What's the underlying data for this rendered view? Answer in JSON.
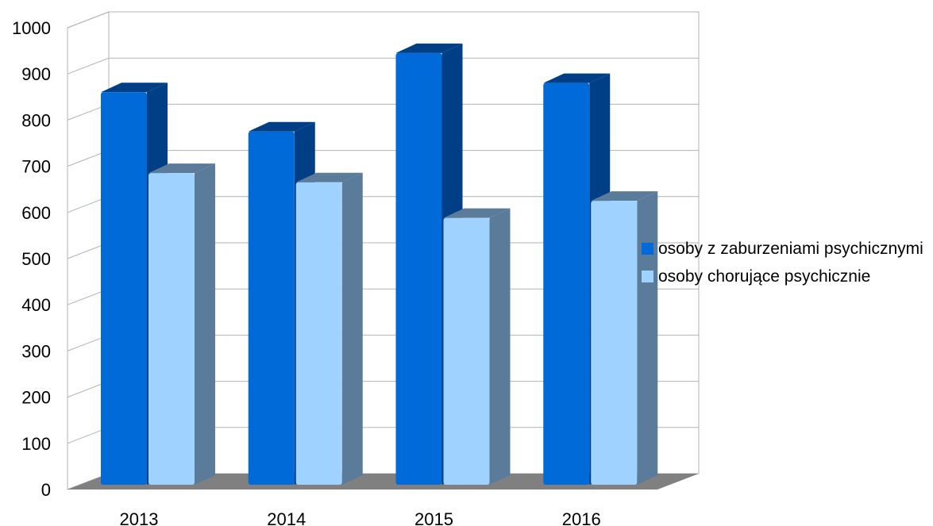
{
  "chart_data": {
    "type": "bar",
    "categories": [
      "2013",
      "2014",
      "2015",
      "2016"
    ],
    "series": [
      {
        "name": "osoby z zaburzeniami psychicznymi",
        "values": [
          850,
          765,
          935,
          870
        ],
        "color": "#006ad9",
        "side_color": "#003f85"
      },
      {
        "name": "osoby chorujące psychicznie",
        "values": [
          675,
          655,
          578,
          615
        ],
        "color": "#9fd2ff",
        "side_color": "#5b7b9a"
      }
    ],
    "ylim": [
      0,
      1000
    ],
    "yticks": [
      "0",
      "100",
      "200",
      "300",
      "400",
      "500",
      "600",
      "700",
      "800",
      "900",
      "1000"
    ],
    "grid": true,
    "legend_position": "right",
    "floor_color": "#808080",
    "title": "",
    "xlabel": "",
    "ylabel": ""
  }
}
